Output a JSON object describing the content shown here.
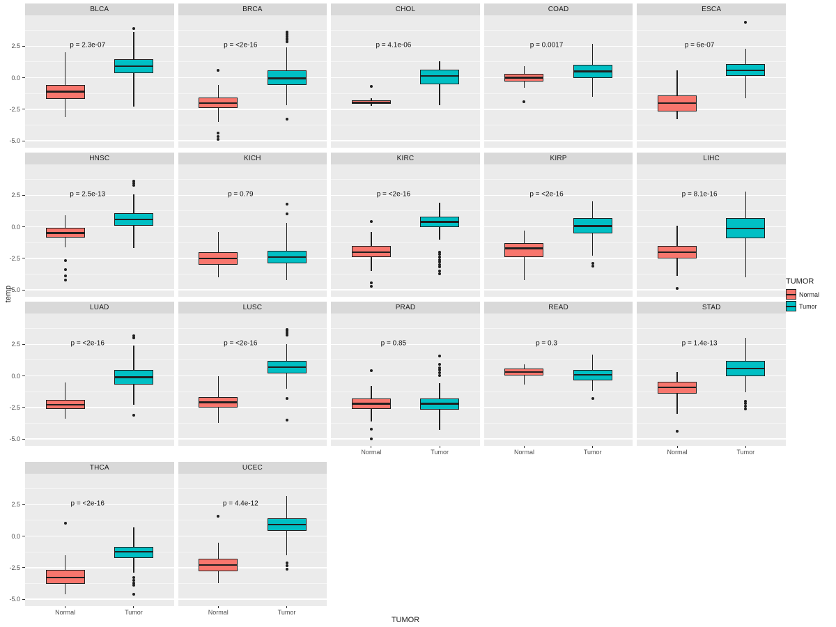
{
  "chart_data": {
    "type": "boxplot",
    "title": "",
    "xlabel": "TUMOR",
    "ylabel": "temp",
    "grid": true,
    "legend": {
      "title": "TUMOR",
      "entries": [
        "Normal",
        "Tumor"
      ],
      "position": "right"
    },
    "groups": [
      "Normal",
      "Tumor"
    ],
    "colors": [
      "#F8766D",
      "#00BFC4"
    ],
    "panel_bg": "#EBEBEB",
    "strip_bg": "#D9D9D9",
    "ylim": [
      -5.55,
      4.95
    ],
    "y_ticks": [
      2.5,
      0.0,
      -2.5,
      -5.0
    ],
    "y_minor": [
      3.75,
      1.25,
      -1.25,
      -3.75
    ],
    "facets": [
      {
        "name": "BLCA",
        "p": "p = 2.3e-07",
        "show_y": true,
        "show_x": false,
        "boxes": [
          {
            "group": "Normal",
            "low": -3.1,
            "q1": -1.7,
            "median": -1.1,
            "q3": -0.55,
            "high": 2.0,
            "outliers": []
          },
          {
            "group": "Tumor",
            "low": -2.3,
            "q1": 0.35,
            "median": 0.9,
            "q3": 1.45,
            "high": 3.6,
            "outliers": [
              3.9
            ]
          }
        ]
      },
      {
        "name": "BRCA",
        "p": "p = <2e-16",
        "show_y": false,
        "show_x": false,
        "boxes": [
          {
            "group": "Normal",
            "low": -3.5,
            "q1": -2.4,
            "median": -2.0,
            "q3": -1.55,
            "high": -0.6,
            "outliers": [
              0.6,
              -4.4,
              -4.65,
              -4.9
            ]
          },
          {
            "group": "Tumor",
            "low": -2.2,
            "q1": -0.6,
            "median": -0.05,
            "q3": 0.6,
            "high": 2.4,
            "outliers": [
              3.6,
              3.45,
              3.3,
              3.15,
              3.0,
              2.85,
              -3.3
            ]
          }
        ]
      },
      {
        "name": "CHOL",
        "p": "p = 4.1e-06",
        "show_y": false,
        "show_x": false,
        "boxes": [
          {
            "group": "Normal",
            "low": -2.25,
            "q1": -2.05,
            "median": -1.95,
            "q3": -1.8,
            "high": -1.65,
            "outliers": [
              -0.7
            ]
          },
          {
            "group": "Tumor",
            "low": -2.2,
            "q1": -0.5,
            "median": 0.15,
            "q3": 0.65,
            "high": 1.3,
            "outliers": []
          }
        ]
      },
      {
        "name": "COAD",
        "p": "p = 0.0017",
        "show_y": false,
        "show_x": false,
        "boxes": [
          {
            "group": "Normal",
            "low": -0.8,
            "q1": -0.3,
            "median": 0.0,
            "q3": 0.3,
            "high": 0.9,
            "outliers": [
              -1.9
            ]
          },
          {
            "group": "Tumor",
            "low": -1.5,
            "q1": 0.0,
            "median": 0.5,
            "q3": 1.05,
            "high": 2.7,
            "outliers": []
          }
        ]
      },
      {
        "name": "ESCA",
        "p": "p = 6e-07",
        "show_y": false,
        "show_x": false,
        "boxes": [
          {
            "group": "Normal",
            "low": -3.3,
            "q1": -2.7,
            "median": -2.0,
            "q3": -1.4,
            "high": 0.6,
            "outliers": []
          },
          {
            "group": "Tumor",
            "low": -1.6,
            "q1": 0.15,
            "median": 0.6,
            "q3": 1.1,
            "high": 2.3,
            "outliers": [
              4.4
            ]
          }
        ]
      },
      {
        "name": "HNSC",
        "p": "p = 2.5e-13",
        "show_y": true,
        "show_x": false,
        "boxes": [
          {
            "group": "Normal",
            "low": -1.6,
            "q1": -0.85,
            "median": -0.5,
            "q3": -0.1,
            "high": 0.9,
            "outliers": [
              -2.7,
              -3.4,
              -3.9,
              -4.25
            ]
          },
          {
            "group": "Tumor",
            "low": -1.7,
            "q1": 0.1,
            "median": 0.6,
            "q3": 1.1,
            "high": 2.6,
            "outliers": [
              3.6,
              3.45,
              3.3
            ]
          }
        ]
      },
      {
        "name": "KICH",
        "p": "p = 0.79",
        "show_y": false,
        "show_x": false,
        "boxes": [
          {
            "group": "Normal",
            "low": -4.0,
            "q1": -3.0,
            "median": -2.5,
            "q3": -2.0,
            "high": -0.4,
            "outliers": []
          },
          {
            "group": "Tumor",
            "low": -4.2,
            "q1": -2.9,
            "median": -2.4,
            "q3": -1.9,
            "high": 0.3,
            "outliers": [
              1.8,
              1.0
            ]
          }
        ]
      },
      {
        "name": "KIRC",
        "p": "p = <2e-16",
        "show_y": false,
        "show_x": false,
        "boxes": [
          {
            "group": "Normal",
            "low": -3.5,
            "q1": -2.4,
            "median": -2.0,
            "q3": -1.5,
            "high": -0.4,
            "outliers": [
              0.4,
              -4.45,
              -4.7
            ]
          },
          {
            "group": "Tumor",
            "low": -1.0,
            "q1": -0.05,
            "median": 0.4,
            "q3": 0.8,
            "high": 1.9,
            "outliers": [
              -2.0,
              -2.2,
              -2.4,
              -2.6,
              -2.8,
              -3.0,
              -3.2,
              -3.5,
              -3.7
            ]
          }
        ]
      },
      {
        "name": "KIRP",
        "p": "p = <2e-16",
        "show_y": false,
        "show_x": false,
        "boxes": [
          {
            "group": "Normal",
            "low": -4.2,
            "q1": -2.4,
            "median": -1.7,
            "q3": -1.3,
            "high": -0.3,
            "outliers": []
          },
          {
            "group": "Tumor",
            "low": -2.3,
            "q1": -0.5,
            "median": 0.05,
            "q3": 0.7,
            "high": 2.0,
            "outliers": [
              -2.9,
              -3.1
            ]
          }
        ]
      },
      {
        "name": "LIHC",
        "p": "p = 8.1e-16",
        "show_y": false,
        "show_x": false,
        "boxes": [
          {
            "group": "Normal",
            "low": -3.9,
            "q1": -2.5,
            "median": -2.0,
            "q3": -1.5,
            "high": 0.1,
            "outliers": [
              -4.9
            ]
          },
          {
            "group": "Tumor",
            "low": -4.0,
            "q1": -0.9,
            "median": -0.15,
            "q3": 0.7,
            "high": 2.8,
            "outliers": []
          }
        ]
      },
      {
        "name": "LUAD",
        "p": "p = <2e-16",
        "show_y": true,
        "show_x": false,
        "boxes": [
          {
            "group": "Normal",
            "low": -3.4,
            "q1": -2.6,
            "median": -2.3,
            "q3": -1.9,
            "high": -0.5,
            "outliers": []
          },
          {
            "group": "Tumor",
            "low": -2.3,
            "q1": -0.7,
            "median": -0.1,
            "q3": 0.5,
            "high": 2.4,
            "outliers": [
              3.2,
              3.0,
              -3.1
            ]
          }
        ]
      },
      {
        "name": "LUSC",
        "p": "p = <2e-16",
        "show_y": false,
        "show_x": false,
        "boxes": [
          {
            "group": "Normal",
            "low": -3.7,
            "q1": -2.5,
            "median": -2.1,
            "q3": -1.7,
            "high": 0.0,
            "outliers": []
          },
          {
            "group": "Tumor",
            "low": -1.0,
            "q1": 0.2,
            "median": 0.7,
            "q3": 1.2,
            "high": 2.5,
            "outliers": [
              3.7,
              3.55,
              3.4,
              3.25,
              -1.8,
              -3.5
            ]
          }
        ]
      },
      {
        "name": "PRAD",
        "p": "p = 0.85",
        "show_y": false,
        "show_x": true,
        "boxes": [
          {
            "group": "Normal",
            "low": -3.6,
            "q1": -2.6,
            "median": -2.2,
            "q3": -1.8,
            "high": -0.8,
            "outliers": [
              0.4,
              -4.2,
              -5.0
            ]
          },
          {
            "group": "Tumor",
            "low": -4.3,
            "q1": -2.7,
            "median": -2.2,
            "q3": -1.8,
            "high": -0.6,
            "outliers": [
              1.6,
              0.9,
              0.65,
              0.45,
              0.25,
              0.05
            ]
          }
        ]
      },
      {
        "name": "READ",
        "p": "p = 0.3",
        "show_y": false,
        "show_x": true,
        "boxes": [
          {
            "group": "Normal",
            "low": -0.7,
            "q1": 0.05,
            "median": 0.3,
            "q3": 0.6,
            "high": 0.9,
            "outliers": []
          },
          {
            "group": "Tumor",
            "low": -1.2,
            "q1": -0.35,
            "median": 0.1,
            "q3": 0.5,
            "high": 1.7,
            "outliers": [
              -1.8
            ]
          }
        ]
      },
      {
        "name": "STAD",
        "p": "p = 1.4e-13",
        "show_y": false,
        "show_x": true,
        "boxes": [
          {
            "group": "Normal",
            "low": -3.0,
            "q1": -1.4,
            "median": -0.9,
            "q3": -0.45,
            "high": 0.3,
            "outliers": [
              -4.4
            ]
          },
          {
            "group": "Tumor",
            "low": -1.3,
            "q1": 0.0,
            "median": 0.6,
            "q3": 1.2,
            "high": 3.0,
            "outliers": [
              -2.0,
              -2.2,
              -2.4,
              -2.6
            ]
          }
        ]
      },
      {
        "name": "THCA",
        "p": "p = <2e-16",
        "show_y": true,
        "show_x": true,
        "boxes": [
          {
            "group": "Normal",
            "low": -4.6,
            "q1": -3.8,
            "median": -3.3,
            "q3": -2.7,
            "high": -1.5,
            "outliers": [
              1.0
            ]
          },
          {
            "group": "Tumor",
            "low": -2.9,
            "q1": -1.75,
            "median": -1.25,
            "q3": -0.85,
            "high": 0.7,
            "outliers": [
              -3.3,
              -3.5,
              -3.7,
              -3.9,
              -4.6
            ]
          }
        ]
      },
      {
        "name": "UCEC",
        "p": "p = 4.4e-12",
        "show_y": false,
        "show_x": true,
        "boxes": [
          {
            "group": "Normal",
            "low": -3.7,
            "q1": -2.8,
            "median": -2.3,
            "q3": -1.8,
            "high": -0.5,
            "outliers": [
              1.6
            ]
          },
          {
            "group": "Tumor",
            "low": -1.5,
            "q1": 0.4,
            "median": 0.9,
            "q3": 1.4,
            "high": 3.2,
            "outliers": [
              -2.1,
              -2.35,
              -2.6
            ]
          }
        ]
      }
    ]
  }
}
